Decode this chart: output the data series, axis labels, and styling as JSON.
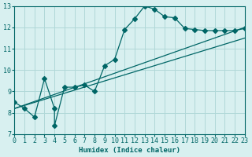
{
  "xlabel": "Humidex (Indice chaleur)",
  "ylabel": "",
  "bg_color": "#d8f0f0",
  "line_color": "#006666",
  "grid_color": "#b0d8d8",
  "xlim": [
    0,
    23
  ],
  "ylim": [
    7,
    13
  ],
  "xticks": [
    0,
    1,
    2,
    3,
    4,
    5,
    6,
    7,
    8,
    9,
    10,
    11,
    12,
    13,
    14,
    15,
    16,
    17,
    18,
    19,
    20,
    21,
    22,
    23
  ],
  "yticks": [
    7,
    8,
    9,
    10,
    11,
    12,
    13
  ],
  "series": [
    {
      "x": [
        0,
        1,
        2,
        3,
        4,
        4,
        5,
        6,
        7,
        8,
        9,
        10,
        11,
        12,
        13,
        14,
        15,
        16,
        17,
        18,
        19,
        20,
        21,
        22,
        23
      ],
      "y": [
        8.5,
        8.2,
        7.8,
        9.6,
        8.2,
        7.4,
        9.2,
        9.2,
        9.3,
        9.0,
        10.2,
        10.5,
        11.9,
        12.4,
        13.0,
        12.85,
        12.5,
        12.45,
        11.95,
        11.9,
        11.85,
        11.85,
        11.85,
        11.85,
        11.95
      ],
      "use_marker": true,
      "markersize": 3
    },
    {
      "x": [
        0,
        23
      ],
      "y": [
        8.2,
        12.0
      ],
      "use_marker": false,
      "markersize": 0
    },
    {
      "x": [
        0,
        23
      ],
      "y": [
        8.2,
        11.5
      ],
      "use_marker": false,
      "markersize": 0
    }
  ]
}
